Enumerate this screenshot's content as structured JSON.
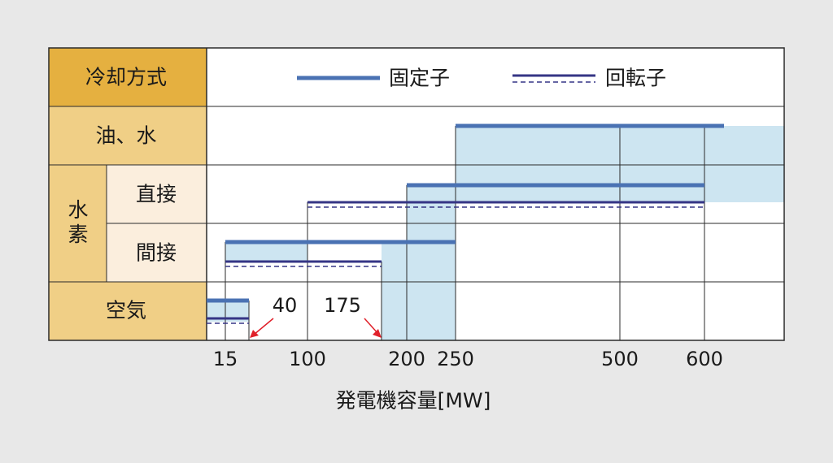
{
  "header": {
    "label": "冷却方式"
  },
  "legend": {
    "stator": "固定子",
    "rotor": "回転子"
  },
  "rows": {
    "oil_water": "油、水",
    "hydrogen": "水素",
    "direct": "直接",
    "indirect": "間接",
    "air": "空気"
  },
  "annotations": {
    "a40": "40",
    "a175": "175"
  },
  "xlabel": "発電機容量[MW]",
  "colors": {
    "header_bg": "#e5b040",
    "row_bg": "#f0cf86",
    "sub_bg": "#fbeedd",
    "stator": "#4a72b3",
    "rotor": "#353585",
    "shade": "#cde5f1",
    "arrow": "#e0202a"
  },
  "chart_data": {
    "type": "bar",
    "orientation": "horizontal",
    "xlabel": "発電機容量[MW]",
    "x_ticks": [
      "15",
      "100",
      "200",
      "250",
      "500",
      "600"
    ],
    "categories": [
      "油、水",
      "水素 直接",
      "水素 間接",
      "空気"
    ],
    "series": [
      {
        "name": "固定子",
        "ranges": [
          {
            "category": "油、水",
            "start": 250,
            "end": 650
          },
          {
            "category": "水素 直接",
            "start": 200,
            "end": 600
          },
          {
            "category": "水素 間接",
            "start": 15,
            "end": 250
          },
          {
            "category": "空気",
            "start": 0,
            "end": 40
          }
        ]
      },
      {
        "name": "回転子",
        "ranges": [
          {
            "category": "水素 直接",
            "start": 100,
            "end": 600
          },
          {
            "category": "水素 間接",
            "start": 15,
            "end": 175
          },
          {
            "category": "空気",
            "start": 0,
            "end": 40
          }
        ]
      }
    ],
    "annotations": [
      {
        "value": 40,
        "label": "40"
      },
      {
        "value": 175,
        "label": "175"
      }
    ]
  }
}
